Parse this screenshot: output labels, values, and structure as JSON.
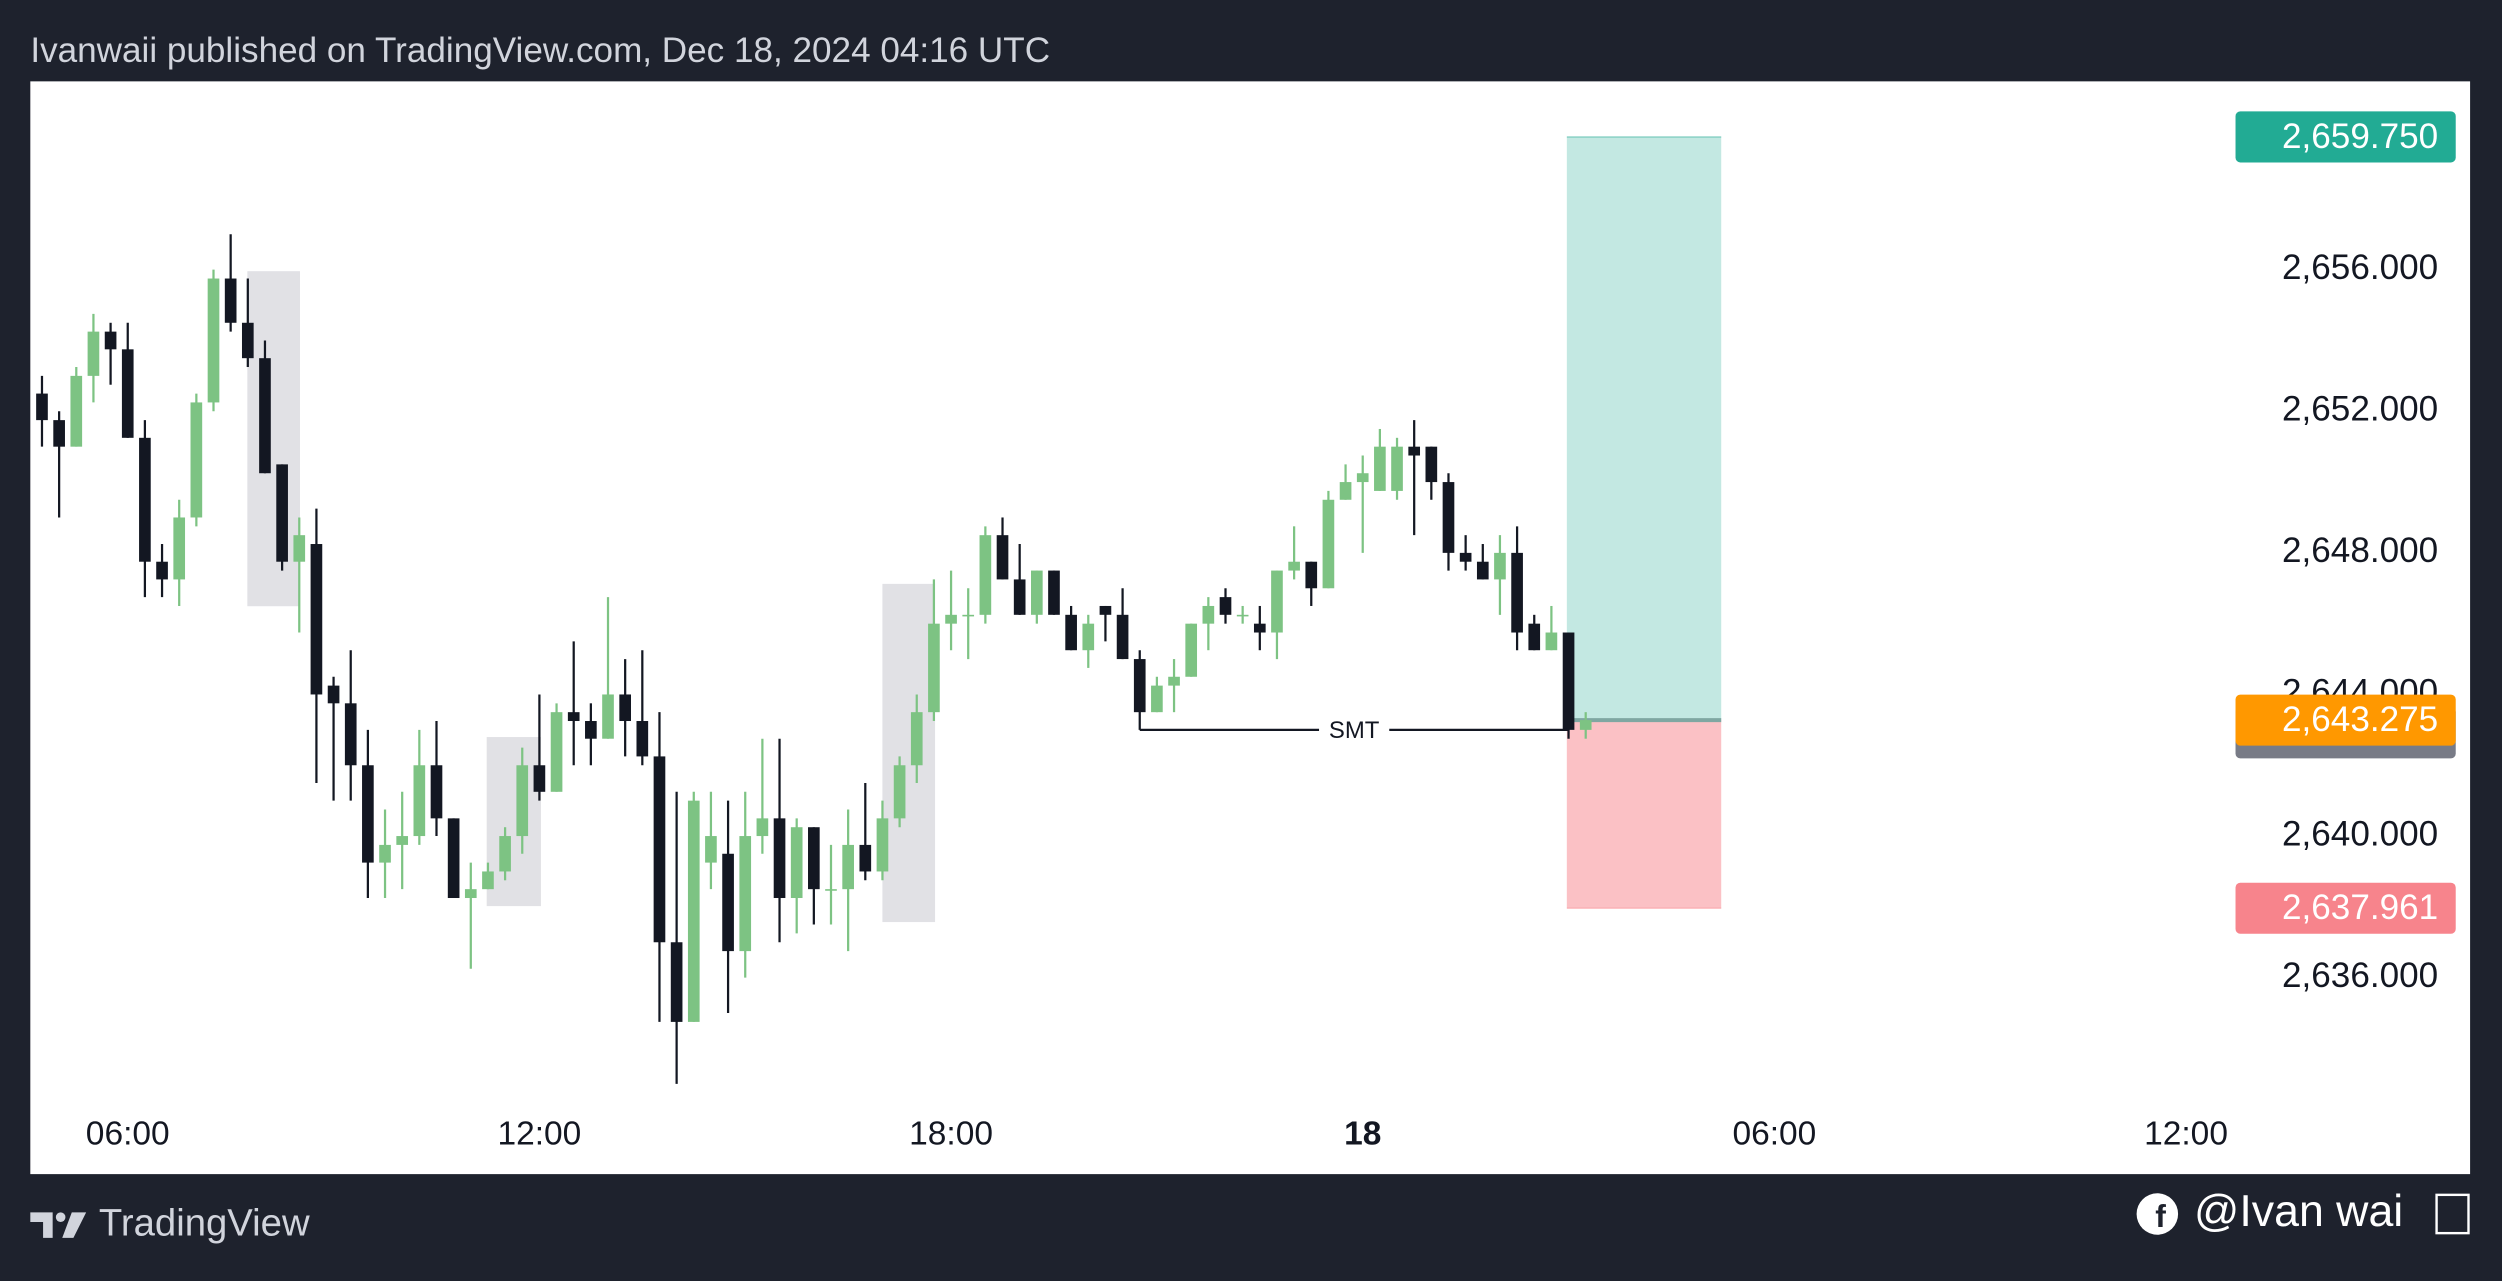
{
  "page": {
    "header": "Ivanwaii published on TradingView.com, Dec 18, 2024 04:16 UTC",
    "brand": "TradingView",
    "handle": "@Ivan wai"
  },
  "chart_data": {
    "type": "candlestick",
    "up_color": "#7dc383",
    "down_color": "#131722",
    "x": [
      4.75,
      5,
      5.25,
      5.5,
      5.75,
      6,
      6.25,
      6.5,
      6.75,
      7,
      7.25,
      7.5,
      7.75,
      8,
      8.25,
      8.5,
      8.75,
      9,
      9.25,
      9.5,
      9.75,
      10,
      10.25,
      10.5,
      10.75,
      11,
      11.25,
      11.5,
      11.75,
      12,
      12.25,
      12.5,
      12.75,
      13,
      13.25,
      13.5,
      13.75,
      14,
      14.25,
      14.5,
      14.75,
      15,
      15.25,
      15.5,
      15.75,
      16,
      16.25,
      16.5,
      16.75,
      17,
      17.25,
      17.5,
      17.75,
      18,
      18.25,
      18.5,
      18.75,
      19,
      19.25,
      19.5,
      19.75,
      20,
      20.25,
      20.5,
      20.75,
      21,
      21.25,
      21.5,
      21.75,
      22,
      22.25,
      22.5,
      22.75,
      23,
      23.25,
      23.5,
      23.75,
      24,
      24.25,
      24.5,
      24.75,
      25,
      25.25,
      25.5,
      25.75,
      26,
      26.25,
      26.5,
      26.75,
      27,
      27.25
    ],
    "open": [
      2652.5,
      2651.75,
      2651,
      2653,
      2654.25,
      2653.75,
      2651.25,
      2647.75,
      2647.25,
      2649,
      2652.25,
      2655.75,
      2654.5,
      2653.5,
      2650.5,
      2647.75,
      2648.25,
      2644.25,
      2643.75,
      2642,
      2639.25,
      2639.75,
      2640,
      2642,
      2640.5,
      2638.25,
      2638.5,
      2639,
      2640,
      2642,
      2641.25,
      2643.5,
      2643.25,
      2642.75,
      2644,
      2643.25,
      2642.25,
      2637,
      2634.75,
      2639.25,
      2639.5,
      2636.75,
      2640,
      2640.5,
      2638.25,
      2640.25,
      2638.5,
      2638.5,
      2639.75,
      2639,
      2640.5,
      2642,
      2643.5,
      2646,
      2646.25,
      2646.25,
      2648.5,
      2647.25,
      2646.25,
      2647.5,
      2646.25,
      2645.25,
      2646.5,
      2646.25,
      2645,
      2643.5,
      2644.25,
      2644.5,
      2646,
      2646.75,
      2646.25,
      2646,
      2645.75,
      2647.5,
      2647.75,
      2647,
      2649.5,
      2650,
      2649.75,
      2649.75,
      2651,
      2651,
      2650,
      2648,
      2647.75,
      2647.25,
      2648,
      2646,
      2645.25,
      2645.75,
      2643
    ],
    "high": [
      2653,
      2652,
      2653.25,
      2654.75,
      2654.5,
      2654.5,
      2651.75,
      2648.25,
      2649.5,
      2652.5,
      2656,
      2657,
      2655.75,
      2654,
      2650.5,
      2649,
      2649.25,
      2644.5,
      2645.25,
      2643,
      2640.75,
      2641.25,
      2643,
      2643.25,
      2640.5,
      2639.25,
      2639.25,
      2640.25,
      2642.5,
      2644,
      2643.75,
      2645.5,
      2643.75,
      2646.75,
      2645,
      2645.25,
      2643.5,
      2641.25,
      2641.25,
      2641.25,
      2641,
      2641.25,
      2642.75,
      2642.75,
      2640.5,
      2640.25,
      2639.75,
      2640.75,
      2641.5,
      2641,
      2642.25,
      2644,
      2647.25,
      2647.5,
      2647,
      2648.75,
      2649,
      2648.25,
      2647.5,
      2647.5,
      2646.5,
      2646.25,
      2646.5,
      2647,
      2645.25,
      2644.5,
      2645,
      2646,
      2646.75,
      2647,
      2646.5,
      2646.5,
      2647.5,
      2648.75,
      2647.75,
      2649.75,
      2650.5,
      2650.75,
      2651.5,
      2651.25,
      2651.75,
      2651,
      2650.25,
      2648.5,
      2648.25,
      2648.5,
      2648.75,
      2646.25,
      2646.5,
      2645.75,
      2643.5
    ],
    "low": [
      2651,
      2649,
      2651,
      2652.25,
      2652.75,
      2651.25,
      2646.75,
      2646.75,
      2646.5,
      2648.75,
      2652,
      2654.25,
      2653.25,
      2650.25,
      2647.5,
      2645.75,
      2641.5,
      2641,
      2641,
      2638.25,
      2638.25,
      2638.5,
      2639.75,
      2640,
      2638.25,
      2636.25,
      2638.5,
      2638.75,
      2639.5,
      2641,
      2641.25,
      2642,
      2642,
      2642.75,
      2642.25,
      2642,
      2634.75,
      2633,
      2634.75,
      2638.5,
      2635,
      2636,
      2639.5,
      2637,
      2637.25,
      2637.5,
      2637.5,
      2636.75,
      2638.75,
      2638.75,
      2640.25,
      2641.5,
      2643.25,
      2645.25,
      2645,
      2646,
      2647.25,
      2646.25,
      2646,
      2646.25,
      2645.25,
      2644.75,
      2645.5,
      2645,
      2643,
      2643.5,
      2643.5,
      2644.5,
      2645.25,
      2646,
      2646,
      2645.25,
      2645,
      2647.25,
      2646.5,
      2647,
      2649.5,
      2648,
      2649.75,
      2649.5,
      2648.5,
      2649.5,
      2647.5,
      2647.5,
      2647.25,
      2646.25,
      2645.25,
      2645.25,
      2645.25,
      2642.75,
      2642.75
    ],
    "close": [
      2651.75,
      2651,
      2653,
      2654.25,
      2653.75,
      2651.25,
      2647.75,
      2647.25,
      2649,
      2652.25,
      2655.75,
      2654.5,
      2653.5,
      2650.25,
      2647.75,
      2648.5,
      2644,
      2643.75,
      2642,
      2639.25,
      2639.75,
      2640,
      2642,
      2640.5,
      2638.25,
      2638.5,
      2639,
      2640,
      2642,
      2641.25,
      2643.5,
      2643.25,
      2642.75,
      2644,
      2643.25,
      2642.25,
      2637,
      2634.75,
      2641,
      2640,
      2636.75,
      2640,
      2640.5,
      2638.25,
      2640.25,
      2638.5,
      2638.5,
      2639.75,
      2639,
      2640.5,
      2642,
      2643.5,
      2646,
      2646.25,
      2646.25,
      2648.5,
      2647.25,
      2646.25,
      2647.5,
      2646.25,
      2645.25,
      2646,
      2646.25,
      2645,
      2643.5,
      2644.25,
      2644.5,
      2646,
      2646.5,
      2646.25,
      2646.25,
      2645.75,
      2647.5,
      2647.75,
      2647,
      2649.5,
      2650,
      2650.25,
      2651,
      2651,
      2650.75,
      2650,
      2648,
      2647.75,
      2647.25,
      2648,
      2645.75,
      2645.25,
      2645.75,
      2643,
      2643.275
    ],
    "xlim": [
      4.58,
      40.14
    ],
    "ylim": [
      2630.45,
      2661.32
    ],
    "xticks": [
      {
        "value": 6,
        "label": "06:00"
      },
      {
        "value": 12,
        "label": "12:00"
      },
      {
        "value": 18,
        "label": "18:00"
      },
      {
        "value": 24,
        "label": "18"
      },
      {
        "value": 30,
        "label": "06:00"
      },
      {
        "value": 36,
        "label": "12:00"
      }
    ],
    "yticks": [
      {
        "value": 2636,
        "label": "2,636.000"
      },
      {
        "value": 2640,
        "label": "2,640.000"
      },
      {
        "value": 2644,
        "label": "2,644.000"
      },
      {
        "value": 2648,
        "label": "2,648.000"
      },
      {
        "value": 2652,
        "label": "2,652.000"
      },
      {
        "value": 2656,
        "label": "2,656.000"
      }
    ],
    "grid": false,
    "position": {
      "target": {
        "value": 2659.75,
        "label": "2,659.750",
        "color": "#22ab94"
      },
      "stop": {
        "value": 2637.961,
        "label": "2,637.961",
        "color": "#f7848c"
      }
    },
    "last_price": {
      "value": 2643.275,
      "label": "2,643.275",
      "color": "#ff9800"
    },
    "annotations": [
      {
        "text": "SMT"
      }
    ]
  }
}
